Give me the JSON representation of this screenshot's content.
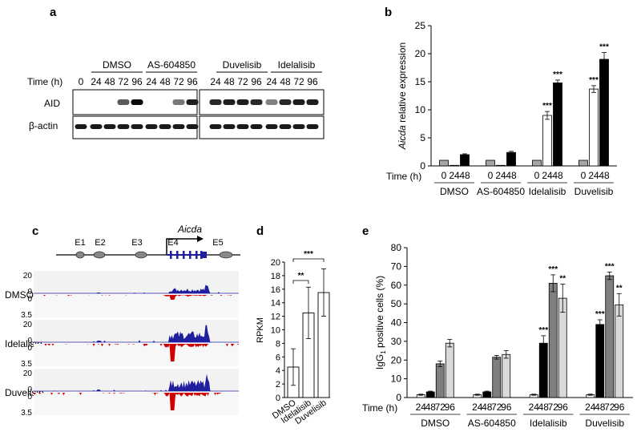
{
  "colors": {
    "gray": "#a6a6a6",
    "white": "#ffffff",
    "black": "#000000",
    "dark_gray": "#7f7f7f",
    "light_gray": "#d9d9d9",
    "coverage_blue": "#1f1f9f",
    "coverage_red": "#d00000"
  },
  "panel_a": {
    "label": "a",
    "time_label": "Time (h)",
    "groups": [
      {
        "name": "DMSO",
        "times": [
          "0",
          "24",
          "48",
          "72",
          "96"
        ]
      },
      {
        "name": "AS-604850",
        "times": [
          "24",
          "48",
          "72",
          "96"
        ]
      },
      {
        "name": "Duvelisib",
        "times": [
          "24",
          "48",
          "72",
          "96"
        ]
      },
      {
        "name": "Idelalisib",
        "times": [
          "24",
          "48",
          "72",
          "96"
        ]
      }
    ],
    "rows": [
      "AID",
      "β-actin"
    ]
  },
  "panel_c": {
    "label": "c",
    "gene": "Aicda",
    "exons": [
      "E1",
      "E2",
      "E3",
      "E4",
      "E5"
    ],
    "tracks": [
      {
        "name": "DMSO",
        "pos_scale": "20",
        "pos_zero": "0",
        "neg_zero": "0",
        "neg_scale": "3.5"
      },
      {
        "name": "Idelalisib",
        "pos_scale": "20",
        "pos_zero": "0",
        "neg_zero": "0",
        "neg_scale": "3.5"
      },
      {
        "name": "Duvelisib",
        "pos_scale": "20",
        "pos_zero": "0",
        "neg_zero": "0",
        "neg_scale": "3.5"
      }
    ]
  },
  "chart_data": [
    {
      "panel": "b",
      "type": "bar",
      "ylabel": "Aicda relative expression",
      "xlabel": "Time (h)",
      "ylim": [
        0,
        25
      ],
      "yticks": [
        0,
        5,
        10,
        15,
        20,
        25
      ],
      "time_labels": [
        "0",
        "24",
        "48"
      ],
      "groups": [
        {
          "name": "DMSO",
          "values": [
            1.0,
            0.1,
            2.0
          ],
          "errors": [
            0,
            0,
            0.15
          ],
          "sig": [
            "",
            "",
            ""
          ]
        },
        {
          "name": "AS-604850",
          "values": [
            1.0,
            0.1,
            2.4
          ],
          "errors": [
            0,
            0,
            0.2
          ],
          "sig": [
            "",
            "",
            ""
          ]
        },
        {
          "name": "Idelalisib",
          "values": [
            1.0,
            9.0,
            14.8
          ],
          "errors": [
            0,
            0.7,
            0.5
          ],
          "sig": [
            "",
            "***",
            "***"
          ]
        },
        {
          "name": "Duvelisib",
          "values": [
            1.0,
            13.7,
            19.0
          ],
          "errors": [
            0,
            0.6,
            1.2
          ],
          "sig": [
            "",
            "***",
            "***"
          ]
        }
      ]
    },
    {
      "panel": "d",
      "type": "bar",
      "ylabel": "RPKM",
      "ylim": [
        0,
        20
      ],
      "yticks": [
        0,
        2,
        4,
        6,
        8,
        10,
        12,
        14,
        16,
        18,
        20
      ],
      "categories": [
        "DMSO",
        "Idelalisib",
        "Duvelisib"
      ],
      "values": [
        4.5,
        12.5,
        15.5
      ],
      "errors": [
        2.7,
        3.8,
        3.5
      ],
      "brackets": [
        {
          "from": "DMSO",
          "to": "Idelalisib",
          "sig": "**"
        },
        {
          "from": "DMSO",
          "to": "Duvelisib",
          "sig": "***"
        }
      ]
    },
    {
      "panel": "e",
      "type": "bar",
      "ylabel": "IgG1 positive cells (%)",
      "xlabel": "Time (h)",
      "ylim": [
        0,
        80
      ],
      "yticks": [
        0,
        10,
        20,
        30,
        40,
        50,
        60,
        70,
        80
      ],
      "time_labels": [
        "24",
        "48",
        "72",
        "96"
      ],
      "groups": [
        {
          "name": "DMSO",
          "values": [
            1.5,
            3.0,
            18.0,
            29.0
          ],
          "errors": [
            0.3,
            0.4,
            1.5,
            2.0
          ],
          "sig": [
            "",
            "",
            "",
            ""
          ]
        },
        {
          "name": "AS-604850",
          "values": [
            1.5,
            3.0,
            21.5,
            23.0
          ],
          "errors": [
            0.3,
            0.4,
            1.0,
            2.0
          ],
          "sig": [
            "",
            "",
            "",
            ""
          ]
        },
        {
          "name": "Idelalisib",
          "values": [
            1.5,
            29.0,
            61.0,
            53.0
          ],
          "errors": [
            0.3,
            4.0,
            4.5,
            7.5
          ],
          "sig": [
            "",
            "***",
            "***",
            "**"
          ]
        },
        {
          "name": "Duvelisib",
          "values": [
            1.5,
            39.0,
            65.0,
            49.5
          ],
          "errors": [
            0.3,
            2.5,
            2.0,
            6.0
          ],
          "sig": [
            "",
            "***",
            "***",
            "**"
          ]
        }
      ]
    }
  ]
}
